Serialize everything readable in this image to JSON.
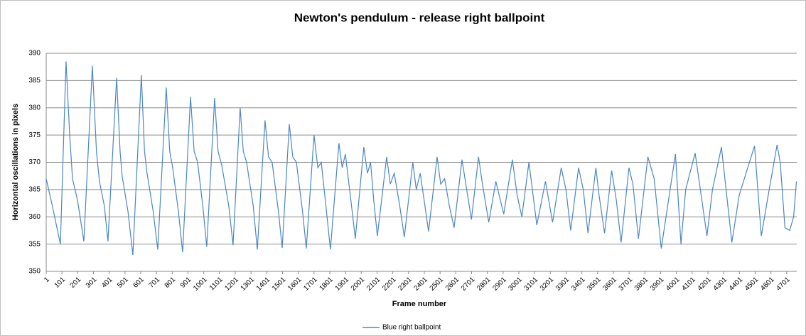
{
  "chart_data": {
    "type": "line",
    "title": "Newton's pendulum - release right ballpoint",
    "x_label": "Frame number",
    "y_label": "Horizontal oscillations in pixels",
    "x": [
      1,
      40,
      91,
      127,
      150,
      168,
      200,
      240,
      294,
      320,
      339,
      370,
      393,
      448,
      470,
      483,
      520,
      551,
      605,
      625,
      641,
      680,
      709,
      763,
      785,
      804,
      840,
      867,
      917,
      940,
      962,
      995,
      1020,
      1070,
      1092,
      1115,
      1160,
      1187,
      1232,
      1252,
      1273,
      1315,
      1341,
      1390,
      1412,
      1435,
      1475,
      1499,
      1544,
      1566,
      1589,
      1628,
      1652,
      1701,
      1725,
      1747,
      1780,
      1805,
      1859,
      1880,
      1900,
      1935,
      1963,
      2017,
      2040,
      2060,
      2080,
      2103,
      2162,
      2185,
      2210,
      2245,
      2274,
      2328,
      2350,
      2375,
      2400,
      2428,
      2482,
      2505,
      2530,
      2560,
      2590,
      2640,
      2700,
      2745,
      2770,
      2810,
      2855,
      2905,
      2960,
      2990,
      3020,
      3065,
      3115,
      3170,
      3215,
      3270,
      3300,
      3330,
      3380,
      3410,
      3440,
      3490,
      3510,
      3545,
      3590,
      3620,
      3650,
      3700,
      3725,
      3760,
      3820,
      3860,
      3905,
      3995,
      4030,
      4060,
      4120,
      4195,
      4230,
      4287,
      4353,
      4400,
      4497,
      4540,
      4590,
      4640,
      4660,
      4690,
      4720,
      4745,
      4763
    ],
    "series": [
      {
        "name": "Blue right ballpoint",
        "color": "#4a86c8",
        "values": [
          367,
          362,
          355,
          388.5,
          375,
          367,
          363,
          355.5,
          387.7,
          372,
          366.5,
          362,
          355.5,
          385.5,
          372,
          367.5,
          361,
          353,
          386,
          372,
          368,
          361,
          354,
          383.7,
          372,
          369,
          361,
          353.5,
          382,
          372,
          370,
          362,
          354.5,
          381.8,
          372,
          369.5,
          362,
          354.8,
          380,
          372,
          370,
          362,
          354,
          377.7,
          371,
          370,
          361,
          354.3,
          377,
          371,
          370,
          361,
          354.2,
          375,
          369,
          370,
          361,
          354,
          373.5,
          369,
          371.5,
          363,
          356,
          372.8,
          368,
          370,
          363,
          356.5,
          371,
          366,
          368,
          362,
          356.3,
          370,
          365,
          368,
          363,
          357.3,
          371,
          366,
          367,
          362,
          358,
          370.5,
          359.5,
          371,
          366,
          359,
          366.5,
          360.5,
          370.5,
          364,
          360,
          370,
          358.5,
          366.5,
          359,
          369,
          365,
          357.5,
          369,
          365,
          357,
          369,
          364,
          357,
          368.5,
          363,
          355.3,
          369,
          366,
          356,
          371,
          367,
          354.2,
          371.5,
          355,
          365,
          371.7,
          356.5,
          365,
          372.8,
          355.3,
          364,
          373,
          356.5,
          365,
          373.2,
          370,
          358,
          357.5,
          360,
          366.5
        ]
      }
    ],
    "xlim": [
      1,
      4765
    ],
    "xticks": [
      1,
      101,
      201,
      301,
      401,
      501,
      601,
      701,
      801,
      901,
      1001,
      1101,
      1201,
      1301,
      1401,
      1501,
      1601,
      1701,
      1801,
      1901,
      2001,
      2101,
      2201,
      2301,
      2401,
      2501,
      2601,
      2701,
      2801,
      2901,
      3001,
      3101,
      3201,
      3301,
      3401,
      3501,
      3601,
      3701,
      3801,
      3901,
      4001,
      4101,
      4201,
      4301,
      4401,
      4501,
      4601,
      4701
    ],
    "ylim": [
      350,
      390
    ],
    "yticks": [
      350,
      355,
      360,
      365,
      370,
      375,
      380,
      385,
      390
    ],
    "grid": true,
    "legend": "bottom"
  }
}
